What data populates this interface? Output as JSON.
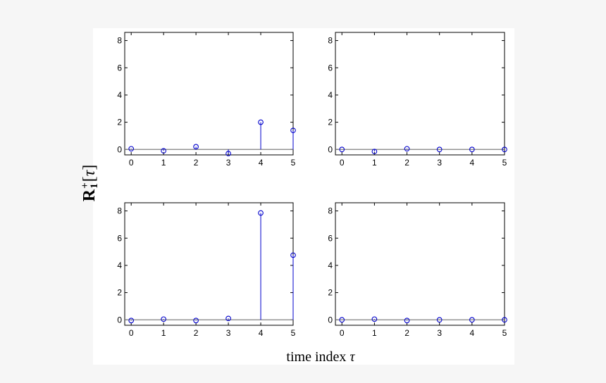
{
  "figure": {
    "ylabel_main": "R",
    "ylabel_sup": "+",
    "ylabel_sub": "1",
    "ylabel_bracket_open": "[",
    "ylabel_tau": "τ",
    "ylabel_bracket_close": "]",
    "xlabel_text": "time index ",
    "xlabel_tau": "τ"
  },
  "colors": {
    "stem": "#0000cc",
    "marker": "#0000cc",
    "baseline": "#7f7f7f",
    "axes": "#000000"
  },
  "chart_data": [
    {
      "type": "stem",
      "position": "top-left",
      "x": [
        0,
        1,
        2,
        3,
        4,
        5
      ],
      "y": [
        0.05,
        -0.1,
        0.2,
        -0.3,
        2.0,
        1.4
      ],
      "xlim": [
        -0.2,
        5
      ],
      "ylim": [
        -0.4,
        8.6
      ],
      "xticks": [
        "0",
        "1",
        "2",
        "3",
        "4",
        "5"
      ],
      "yticks": [
        "0",
        "2",
        "4",
        "6",
        "8"
      ],
      "baseline": 0
    },
    {
      "type": "stem",
      "position": "top-right",
      "x": [
        0,
        1,
        2,
        3,
        4,
        5
      ],
      "y": [
        0.0,
        -0.15,
        0.05,
        0.0,
        0.0,
        0.0
      ],
      "xlim": [
        -0.2,
        5
      ],
      "ylim": [
        -0.4,
        8.6
      ],
      "xticks": [
        "0",
        "1",
        "2",
        "3",
        "4",
        "5"
      ],
      "yticks": [
        "0",
        "2",
        "4",
        "6",
        "8"
      ],
      "baseline": 0
    },
    {
      "type": "stem",
      "position": "bottom-left",
      "x": [
        0,
        1,
        2,
        3,
        4,
        5
      ],
      "y": [
        -0.05,
        0.05,
        -0.05,
        0.1,
        7.85,
        4.75
      ],
      "xlim": [
        -0.2,
        5
      ],
      "ylim": [
        -0.4,
        8.6
      ],
      "xticks": [
        "0",
        "1",
        "2",
        "3",
        "4",
        "5"
      ],
      "yticks": [
        "0",
        "2",
        "4",
        "6",
        "8"
      ],
      "baseline": 0
    },
    {
      "type": "stem",
      "position": "bottom-right",
      "x": [
        0,
        1,
        2,
        3,
        4,
        5
      ],
      "y": [
        0.0,
        0.05,
        -0.05,
        0.0,
        0.0,
        0.0
      ],
      "xlim": [
        -0.2,
        5
      ],
      "ylim": [
        -0.4,
        8.6
      ],
      "xticks": [
        "0",
        "1",
        "2",
        "3",
        "4",
        "5"
      ],
      "yticks": [
        "0",
        "2",
        "4",
        "6",
        "8"
      ],
      "baseline": 0
    }
  ]
}
